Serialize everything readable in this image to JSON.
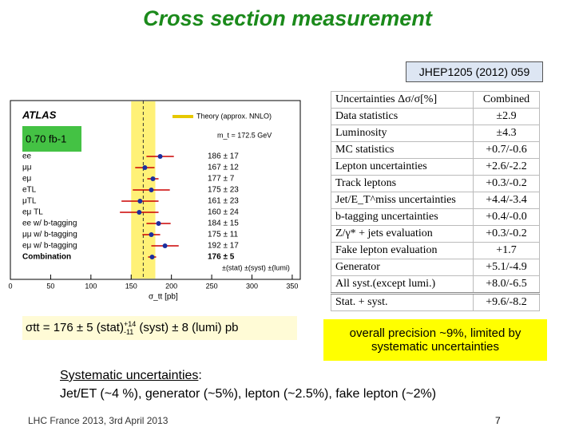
{
  "title": "Cross section measurement",
  "reference": "JHEP1205 (2012) 059",
  "plot": {
    "experiment": "ATLAS",
    "theory_label": "Theory (approx. NNLO)",
    "mass_label": "m_t = 172.5 GeV",
    "lumi_label": "0.70 fb-1",
    "x_label": "σ_tt [pb]",
    "columns_label": "±(stat) ±(syst) ±(lumi)",
    "theory": {
      "value": 165,
      "error": 15
    },
    "xlim": [
      0,
      360
    ],
    "xticks": [
      0,
      50,
      100,
      150,
      200,
      250,
      300,
      350
    ],
    "rows": [
      {
        "label": "ee",
        "value": 186,
        "error": 17,
        "value_label": "186 ± 17"
      },
      {
        "label": "μμ",
        "value": 167,
        "error": 12,
        "value_label": "167 ± 12"
      },
      {
        "label": "eμ",
        "value": 177,
        "error": 7,
        "value_label": "177 ± 7"
      },
      {
        "label": "eTL",
        "value": 175,
        "error": 23,
        "value_label": "175 ± 23"
      },
      {
        "label": "μTL",
        "value": 161,
        "error": 23,
        "value_label": "161 ± 23"
      },
      {
        "label": "eμ TL",
        "value": 160,
        "error": 24,
        "value_label": "160 ± 24"
      },
      {
        "label": "ee w/ b-tagging",
        "value": 184,
        "error": 15,
        "value_label": "184 ± 15"
      },
      {
        "label": "μμ w/ b-tagging",
        "value": 175,
        "error": 11,
        "value_label": "175 ± 11"
      },
      {
        "label": "eμ w/ b-tagging",
        "value": 192,
        "error": 17,
        "value_label": "192 ± 17"
      },
      {
        "label": "Combination",
        "value": 176,
        "error": 5,
        "value_label": "176 ± 5"
      }
    ]
  },
  "table": {
    "header": [
      "Uncertainties Δσ/σ[%]",
      "Combined"
    ],
    "rows": [
      [
        "Data statistics",
        "±2.9"
      ],
      [
        "Luminosity",
        "±4.3"
      ],
      [
        "MC statistics",
        "+0.7/-0.6"
      ],
      [
        "Lepton uncertainties",
        "+2.6/-2.2"
      ],
      [
        "Track leptons",
        "+0.3/-0.2"
      ],
      [
        "Jet/E_T^miss uncertainties",
        "+4.4/-3.4"
      ],
      [
        "b-tagging uncertainties",
        "+0.4/-0.0"
      ],
      [
        "Z/γ* + jets evaluation",
        "+0.3/-0.2"
      ],
      [
        "Fake lepton evaluation",
        "+1.7"
      ],
      [
        "Generator",
        "+5.1/-4.9"
      ],
      [
        "All syst.(except lumi.)",
        "+8.0/-6.5"
      ],
      [
        "Stat. + syst.",
        "+9.6/-8.2"
      ]
    ]
  },
  "result": {
    "symbol": "σtt",
    "text1": "= 176 ± 5 (stat)",
    "up": "+14",
    "down": "-11",
    "text2": "(syst) ± 8 (lumi) pb"
  },
  "precision_note": "overall precision ~9%, limited by systematic uncertainties",
  "systematics": {
    "heading": "Systematic uncertainties",
    "colon": " :",
    "text": "Jet/ET (~4 %), generator (~5%), lepton (~2.5%), fake lepton (~2%)"
  },
  "footer": "LHC France 2013, 3rd April 2013",
  "page_number": "7"
}
